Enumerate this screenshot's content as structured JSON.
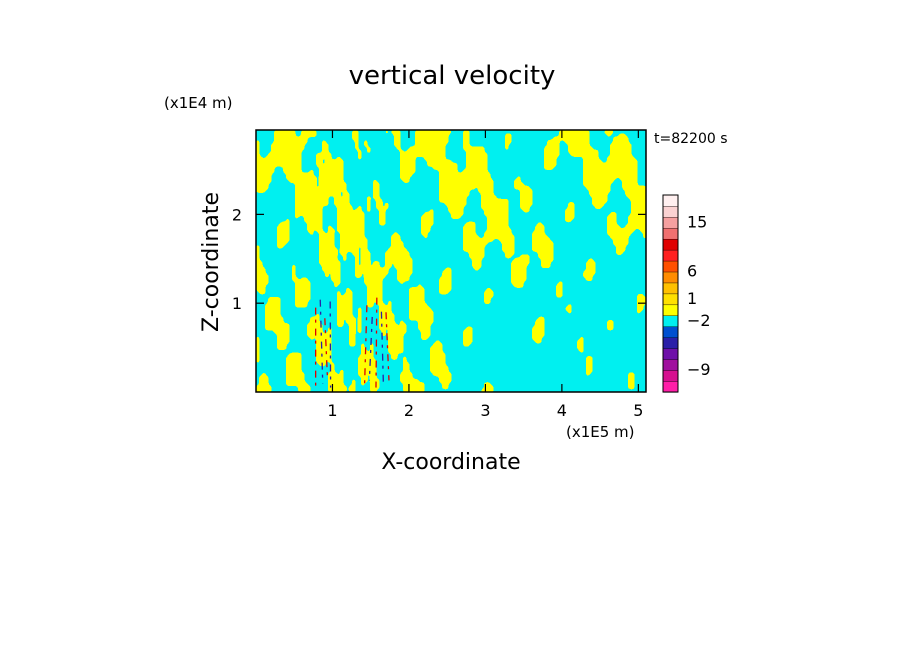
{
  "chart_data": {
    "type": "heatmap",
    "title": "vertical velocity",
    "xlabel": "X-coordinate",
    "ylabel": "Z-coordinate",
    "x_unit": "(x1E5 m)",
    "y_unit": "(x1E4 m)",
    "time_label": "t=82200 s",
    "xlim": [
      0,
      5.1
    ],
    "ylim": [
      0,
      2.95
    ],
    "x_ticks": [
      {
        "value": 1,
        "label": "1"
      },
      {
        "value": 2,
        "label": "2"
      },
      {
        "value": 3,
        "label": "3"
      },
      {
        "value": 4,
        "label": "4"
      },
      {
        "value": 5,
        "label": "5"
      }
    ],
    "y_ticks": [
      {
        "value": 1,
        "label": "1"
      },
      {
        "value": 2,
        "label": "2"
      }
    ],
    "colorbar": {
      "levels": [
        {
          "color": "#ff1fa8"
        },
        {
          "color": "#d6108f"
        },
        {
          "color": "#a00f9e"
        },
        {
          "color": "#6e10a8"
        },
        {
          "color": "#2a1fa8"
        },
        {
          "color": "#0050d0"
        },
        {
          "color": "#00f0f0"
        },
        {
          "color": "#ffff00"
        },
        {
          "color": "#ffe000"
        },
        {
          "color": "#ffc000"
        },
        {
          "color": "#ff8c00"
        },
        {
          "color": "#ff5000"
        },
        {
          "color": "#ff2020"
        },
        {
          "color": "#e00000"
        },
        {
          "color": "#f07070"
        },
        {
          "color": "#f5a0a0"
        },
        {
          "color": "#fad2d2"
        },
        {
          "color": "#fff0f0"
        }
      ],
      "labels": [
        {
          "text": "15",
          "at_level": 15.5
        },
        {
          "text": "6",
          "at_level": 11
        },
        {
          "text": "1",
          "at_level": 8.5
        },
        {
          "text": "−2",
          "at_level": 6.5
        },
        {
          "text": "−9",
          "at_level": 2
        }
      ]
    },
    "field_colors": {
      "positive": "#ffff00",
      "negative": "#00f0f0",
      "strong_up": "#e00000",
      "strong_down": "#2a1fa8"
    }
  }
}
